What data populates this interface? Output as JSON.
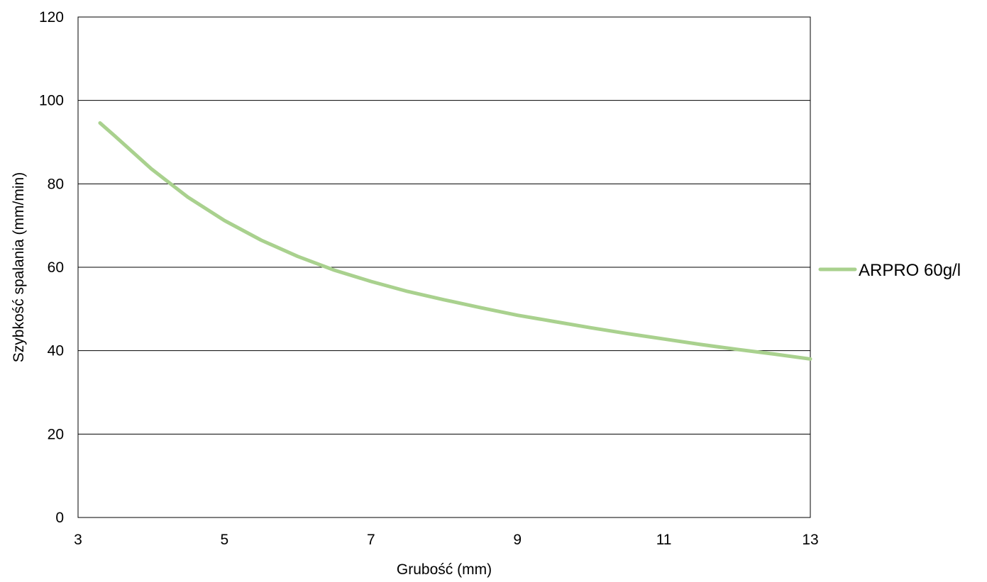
{
  "chart_data": {
    "type": "line",
    "title": "",
    "xlabel": "Grubość (mm)",
    "ylabel": "Szybkość spalania (mm/min)",
    "xlim": [
      3,
      13
    ],
    "ylim": [
      0,
      120
    ],
    "x_ticks": [
      3,
      5,
      7,
      9,
      11,
      13
    ],
    "y_ticks": [
      0,
      20,
      40,
      60,
      80,
      100,
      120
    ],
    "grid": "horizontal",
    "legend_position": "right",
    "series": [
      {
        "name": "ARPRO 60g/l",
        "color": "#a9d18e",
        "x": [
          3.3,
          3.5,
          4,
          4.5,
          5,
          5.5,
          6,
          6.5,
          7,
          7.5,
          8,
          8.5,
          9,
          9.5,
          10,
          10.5,
          11,
          11.5,
          12,
          12.5,
          13
        ],
        "y": [
          94.6,
          91.5,
          83.6,
          76.8,
          71.2,
          66.5,
          62.6,
          59.3,
          56.6,
          54.2,
          52.2,
          50.3,
          48.5,
          47.0,
          45.5,
          44.1,
          42.8,
          41.5,
          40.3,
          39.2,
          38.0
        ]
      }
    ]
  }
}
